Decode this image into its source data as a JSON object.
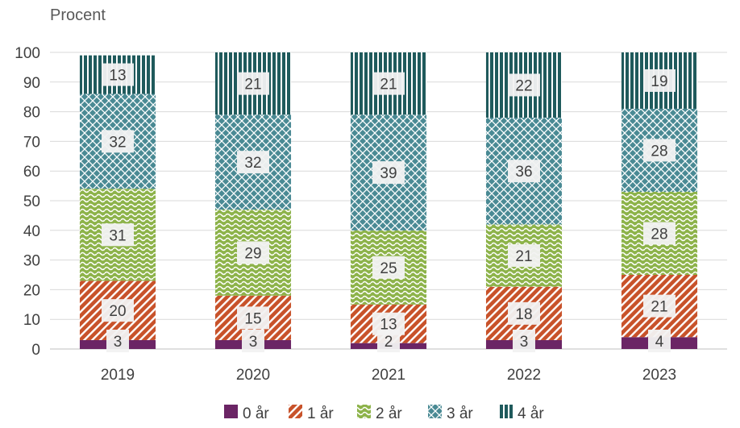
{
  "chart_data": {
    "type": "bar",
    "stacked": true,
    "ylabel": "Procent",
    "ylim": [
      0,
      100
    ],
    "yticks": [
      0,
      10,
      20,
      30,
      40,
      50,
      60,
      70,
      80,
      90,
      100
    ],
    "categories": [
      "2019",
      "2020",
      "2021",
      "2022",
      "2023"
    ],
    "legend_position": "bottom",
    "series": [
      {
        "name": "0 år",
        "color": "#6b2565",
        "pattern": "solid",
        "values": [
          3,
          3,
          2,
          3,
          4
        ]
      },
      {
        "name": "1 år",
        "color": "#c8522a",
        "pattern": "diagonal",
        "values": [
          20,
          15,
          13,
          18,
          21
        ]
      },
      {
        "name": "2 år",
        "color": "#8db34a",
        "pattern": "wave",
        "values": [
          31,
          29,
          25,
          21,
          28
        ]
      },
      {
        "name": "3 år",
        "color": "#4a8a94",
        "pattern": "diamond",
        "values": [
          32,
          32,
          39,
          36,
          28
        ]
      },
      {
        "name": "4 år",
        "color": "#1f5a5c",
        "pattern": "vertical",
        "values": [
          13,
          21,
          21,
          22,
          19
        ]
      }
    ]
  }
}
